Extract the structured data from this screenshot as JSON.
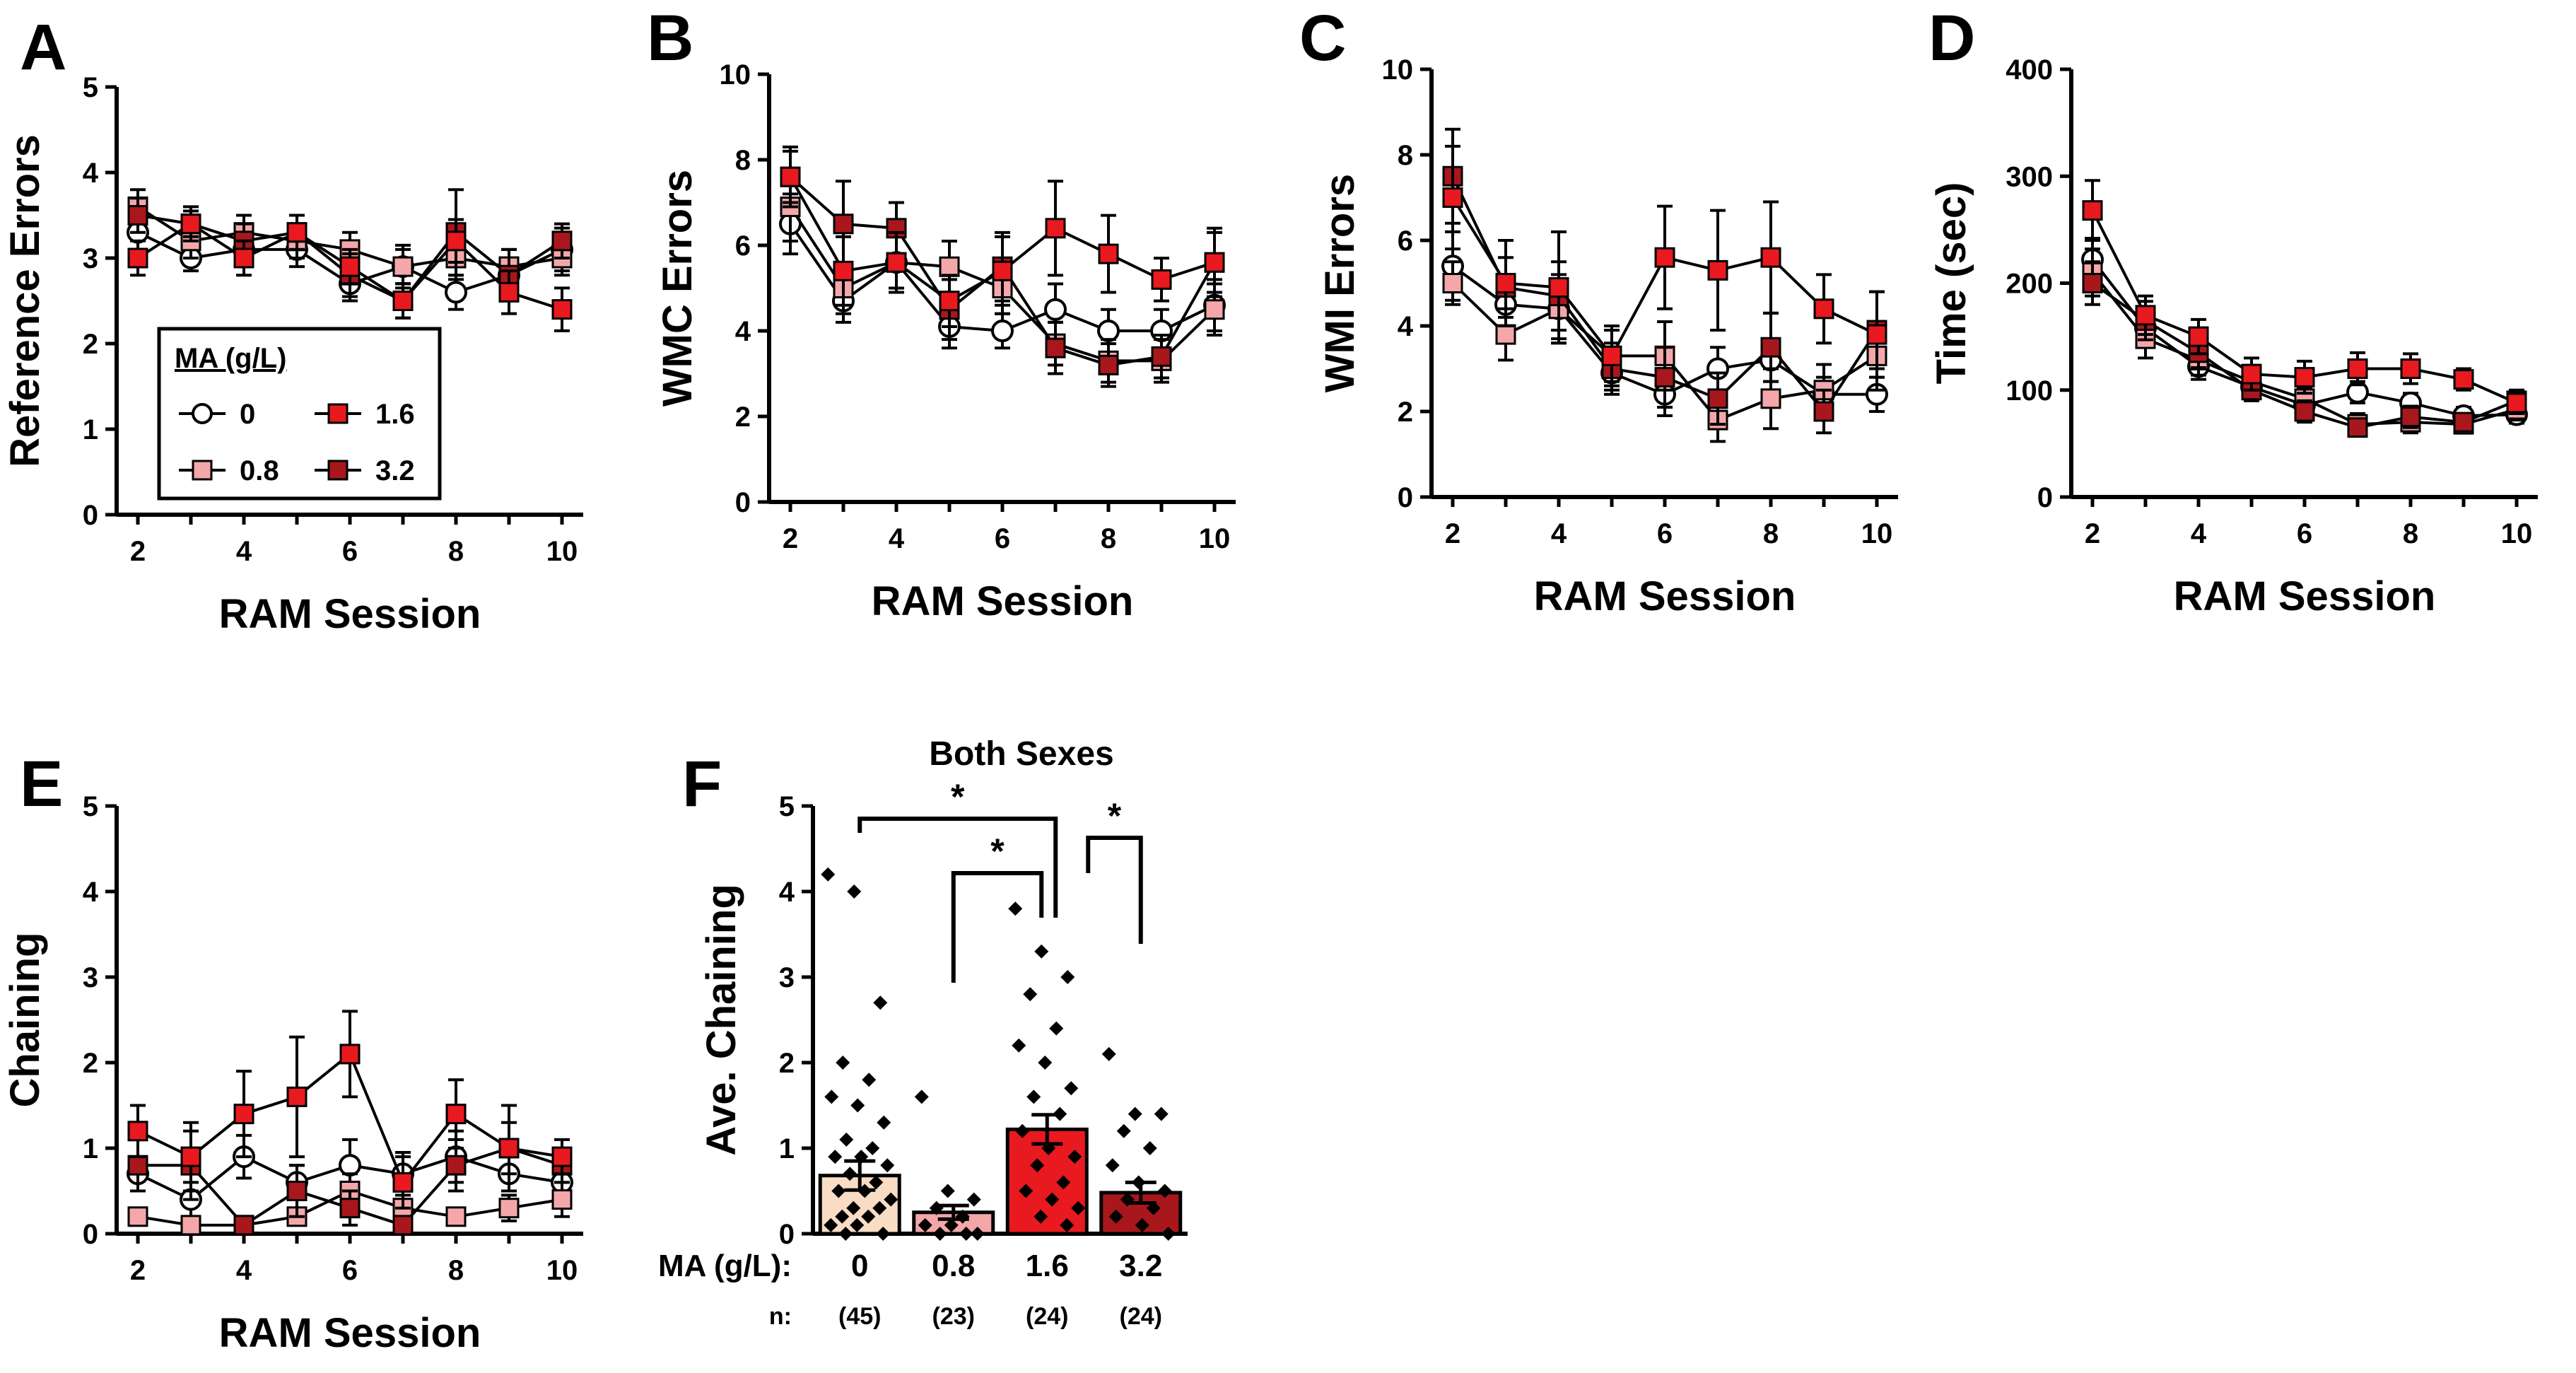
{
  "figure": {
    "legend": {
      "title": "MA (g/L)",
      "entries": [
        {
          "label": "0",
          "color": "#ffffff"
        },
        {
          "label": "1.6",
          "color": "#e8191f"
        },
        {
          "label": "0.8",
          "color": "#f4a7a9"
        },
        {
          "label": "3.2",
          "color": "#a8171c"
        }
      ]
    },
    "colors": {
      "dose_0": "#ffffff",
      "dose_0_8": "#f4a7a9",
      "dose_1_6": "#e8191f",
      "dose_3_2": "#a8171c",
      "bar_0": "#f8dcc4",
      "bar_0_8": "#f4a7a9",
      "bar_1_6": "#e8191f",
      "bar_3_2": "#a8171c"
    }
  },
  "chart_data": [
    {
      "panel": "A",
      "type": "line",
      "xlabel": "RAM Session",
      "ylabel": "Reference Errors",
      "x": [
        2,
        3,
        4,
        5,
        6,
        7,
        8,
        9,
        10
      ],
      "xticks": [
        "2",
        "4",
        "6",
        "8",
        "10"
      ],
      "ylim": [
        0,
        5
      ],
      "yticks": [
        "0",
        "1",
        "2",
        "3",
        "4",
        "5"
      ],
      "series": [
        {
          "name": "0",
          "values": [
            3.3,
            3.0,
            3.1,
            3.1,
            2.7,
            2.9,
            2.6,
            2.8,
            3.1
          ],
          "err": [
            0.2,
            0.15,
            0.2,
            0.2,
            0.2,
            0.25,
            0.2,
            0.2,
            0.25
          ]
        },
        {
          "name": "0.8",
          "values": [
            3.6,
            3.2,
            3.3,
            3.2,
            3.1,
            2.9,
            3.0,
            2.9,
            3.0
          ],
          "err": [
            0.2,
            0.2,
            0.2,
            0.2,
            0.2,
            0.2,
            0.25,
            0.2,
            0.2
          ]
        },
        {
          "name": "1.6",
          "values": [
            3.0,
            3.4,
            3.0,
            3.3,
            2.9,
            2.5,
            3.2,
            2.6,
            2.4
          ],
          "err": [
            0.2,
            0.2,
            0.2,
            0.2,
            0.2,
            0.2,
            0.25,
            0.25,
            0.25
          ]
        },
        {
          "name": "3.2",
          "values": [
            3.5,
            3.4,
            3.2,
            3.3,
            2.8,
            2.5,
            3.3,
            2.8,
            3.2
          ],
          "err": [
            0.2,
            0.15,
            0.2,
            0.2,
            0.25,
            0.2,
            0.5,
            0.3,
            0.2
          ]
        }
      ]
    },
    {
      "panel": "B",
      "type": "line",
      "xlabel": "RAM Session",
      "ylabel": "WMC Errors",
      "x": [
        2,
        3,
        4,
        5,
        6,
        7,
        8,
        9,
        10
      ],
      "xticks": [
        "2",
        "4",
        "6",
        "8",
        "10"
      ],
      "ylim": [
        0,
        10
      ],
      "yticks": [
        "0",
        "2",
        "4",
        "6",
        "8",
        "10"
      ],
      "series": [
        {
          "name": "0",
          "values": [
            6.5,
            4.7,
            5.6,
            4.1,
            4.0,
            4.5,
            4.0,
            4.0,
            4.6
          ],
          "err": [
            0.7,
            0.5,
            0.6,
            0.5,
            0.4,
            0.6,
            0.5,
            0.5,
            0.6
          ]
        },
        {
          "name": "0.8",
          "values": [
            6.9,
            5.0,
            5.6,
            5.5,
            5.0,
            3.7,
            3.3,
            3.3,
            4.5
          ],
          "err": [
            0.8,
            0.6,
            0.7,
            0.6,
            0.6,
            0.5,
            0.5,
            0.5,
            0.6
          ]
        },
        {
          "name": "1.6",
          "values": [
            7.6,
            5.4,
            5.6,
            4.7,
            5.4,
            6.4,
            5.8,
            5.2,
            5.6
          ],
          "err": [
            0.7,
            0.8,
            0.7,
            0.6,
            0.8,
            1.1,
            0.9,
            0.5,
            0.8
          ]
        },
        {
          "name": "3.2",
          "values": [
            7.6,
            6.5,
            6.4,
            4.5,
            5.5,
            3.6,
            3.2,
            3.4,
            5.6
          ],
          "err": [
            0.6,
            1.0,
            0.6,
            0.7,
            0.8,
            0.6,
            0.5,
            0.5,
            0.7
          ]
        }
      ]
    },
    {
      "panel": "C",
      "type": "line",
      "xlabel": "RAM Session",
      "ylabel": "WMI Errors",
      "x": [
        2,
        3,
        4,
        5,
        6,
        7,
        8,
        9,
        10
      ],
      "xticks": [
        "2",
        "4",
        "6",
        "8",
        "10"
      ],
      "ylim": [
        0,
        10
      ],
      "yticks": [
        "0",
        "2",
        "4",
        "6",
        "8",
        "10"
      ],
      "series": [
        {
          "name": "0",
          "values": [
            5.4,
            4.5,
            4.4,
            2.9,
            2.4,
            3.0,
            3.2,
            2.4,
            2.4
          ],
          "err": [
            0.8,
            0.7,
            0.7,
            0.4,
            0.5,
            0.5,
            0.5,
            0.4,
            0.4
          ]
        },
        {
          "name": "0.8",
          "values": [
            5.0,
            3.8,
            4.4,
            3.3,
            3.3,
            1.8,
            2.3,
            2.5,
            3.3
          ],
          "err": [
            0.5,
            0.6,
            0.8,
            0.7,
            0.8,
            0.5,
            0.7,
            0.6,
            0.8
          ]
        },
        {
          "name": "1.6",
          "values": [
            7.0,
            5.0,
            4.9,
            3.3,
            5.6,
            5.3,
            5.6,
            4.4,
            3.8
          ],
          "err": [
            1.2,
            1.0,
            1.3,
            0.6,
            1.2,
            1.4,
            1.3,
            0.8,
            1.0
          ]
        },
        {
          "name": "3.2",
          "values": [
            7.5,
            4.9,
            4.7,
            3.0,
            2.8,
            2.3,
            3.5,
            2.0,
            3.9
          ],
          "err": [
            1.1,
            0.7,
            0.8,
            0.6,
            0.7,
            0.6,
            0.8,
            0.5,
            0.9
          ]
        }
      ]
    },
    {
      "panel": "D",
      "type": "line",
      "xlabel": "RAM Session",
      "ylabel": "Time (sec)",
      "x": [
        2,
        3,
        4,
        5,
        6,
        7,
        8,
        9,
        10
      ],
      "xticks": [
        "2",
        "4",
        "6",
        "8",
        "10"
      ],
      "ylim": [
        0,
        400
      ],
      "yticks": [
        "0",
        "100",
        "200",
        "300",
        "400"
      ],
      "series": [
        {
          "name": "0",
          "values": [
            222,
            158,
            122,
            103,
            86,
            98,
            88,
            76,
            77
          ],
          "err": [
            20,
            15,
            12,
            10,
            9,
            10,
            9,
            8,
            8
          ]
        },
        {
          "name": "0.8",
          "values": [
            210,
            148,
            128,
            108,
            92,
            68,
            70,
            68,
            82
          ],
          "err": [
            22,
            18,
            14,
            12,
            10,
            10,
            10,
            8,
            10
          ]
        },
        {
          "name": "1.6",
          "values": [
            268,
            170,
            150,
            115,
            112,
            120,
            120,
            110,
            88
          ],
          "err": [
            28,
            18,
            16,
            15,
            15,
            15,
            14,
            10,
            10
          ]
        },
        {
          "name": "3.2",
          "values": [
            200,
            165,
            135,
            100,
            80,
            65,
            75,
            70,
            90
          ],
          "err": [
            20,
            18,
            14,
            10,
            10,
            8,
            10,
            8,
            10
          ]
        }
      ]
    },
    {
      "panel": "E",
      "type": "line",
      "xlabel": "RAM Session",
      "ylabel": "Chaining",
      "x": [
        2,
        3,
        4,
        5,
        6,
        7,
        8,
        9,
        10
      ],
      "xticks": [
        "2",
        "4",
        "6",
        "8",
        "10"
      ],
      "ylim": [
        0,
        5
      ],
      "yticks": [
        "0",
        "1",
        "2",
        "3",
        "4",
        "5"
      ],
      "series": [
        {
          "name": "0",
          "values": [
            0.7,
            0.4,
            0.9,
            0.6,
            0.8,
            0.7,
            0.9,
            0.7,
            0.6
          ],
          "err": [
            0.2,
            0.2,
            0.25,
            0.2,
            0.3,
            0.25,
            0.3,
            0.2,
            0.2
          ]
        },
        {
          "name": "0.8",
          "values": [
            0.2,
            0.1,
            0.1,
            0.2,
            0.5,
            0.3,
            0.2,
            0.3,
            0.4
          ],
          "err": [
            0.1,
            0.1,
            0.1,
            0.1,
            0.2,
            0.15,
            0.1,
            0.15,
            0.2
          ]
        },
        {
          "name": "1.6",
          "values": [
            1.2,
            0.9,
            1.4,
            1.6,
            2.1,
            0.6,
            1.4,
            1.0,
            0.9
          ],
          "err": [
            0.3,
            0.4,
            0.5,
            0.7,
            0.5,
            0.3,
            0.4,
            0.5,
            0.2
          ]
        },
        {
          "name": "3.2",
          "values": [
            0.8,
            0.8,
            0.1,
            0.5,
            0.3,
            0.1,
            0.8,
            1.0,
            0.8
          ],
          "err": [
            0.3,
            0.4,
            0.1,
            0.3,
            0.2,
            0.1,
            0.3,
            0.3,
            0.2
          ]
        }
      ]
    },
    {
      "panel": "F",
      "type": "bar",
      "title": "Both Sexes",
      "ylabel": "Ave. Chaining",
      "xlabel_prefix": "MA (g/L):",
      "n_prefix": "n:",
      "categories": [
        "0",
        "0.8",
        "1.6",
        "3.2"
      ],
      "n": [
        "(45)",
        "(23)",
        "(24)",
        "(24)"
      ],
      "values": [
        0.68,
        0.25,
        1.22,
        0.48
      ],
      "sem": [
        0.17,
        0.08,
        0.17,
        0.12
      ],
      "ylim": [
        0,
        5
      ],
      "yticks": [
        "0",
        "1",
        "2",
        "3",
        "4",
        "5"
      ],
      "significance": [
        {
          "from": "0",
          "to": "1.6",
          "label": "*"
        },
        {
          "from": "0.8",
          "to": "1.6",
          "label": "*"
        },
        {
          "from": "1.6",
          "to": "3.2",
          "label": "*"
        }
      ],
      "points": [
        [
          4.2,
          4.0,
          2.7,
          2.0,
          1.8,
          1.6,
          1.5,
          1.3,
          1.1,
          1.0,
          0.9,
          0.9,
          0.8,
          0.7,
          0.6,
          0.5,
          0.5,
          0.4,
          0.3,
          0.3,
          0.2,
          0.2,
          0.1,
          0.1,
          0.0,
          0.0
        ],
        [
          1.6,
          0.5,
          0.4,
          0.3,
          0.2,
          0.1,
          0.1,
          0.0,
          0.0,
          0.0
        ],
        [
          3.8,
          3.3,
          3.0,
          2.8,
          2.4,
          2.2,
          2.0,
          1.7,
          1.6,
          1.4,
          1.2,
          1.0,
          0.9,
          0.8,
          0.6,
          0.5,
          0.4,
          0.3,
          0.2,
          0.1
        ],
        [
          2.1,
          1.4,
          1.4,
          1.2,
          1.0,
          0.8,
          0.6,
          0.5,
          0.4,
          0.3,
          0.2,
          0.1,
          0.0
        ]
      ]
    }
  ]
}
